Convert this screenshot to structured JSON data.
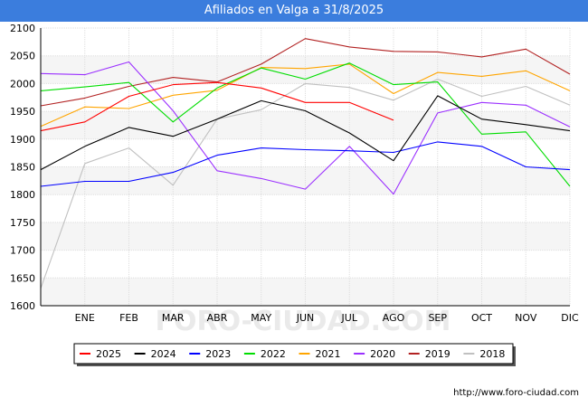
{
  "title": "Afiliados en Valga a 31/8/2025",
  "footer": "http://www.foro-ciudad.com",
  "watermark": "FORO-CIUDAD.COM",
  "chart_data": {
    "type": "line",
    "title": "Afiliados en Valga a 31/8/2025",
    "xlabel": "",
    "ylabel": "",
    "categories": [
      "",
      "ENE",
      "FEB",
      "MAR",
      "ABR",
      "MAY",
      "JUN",
      "JUL",
      "AGO",
      "SEP",
      "OCT",
      "NOV",
      "DIC"
    ],
    "ylim": [
      1600,
      2100
    ],
    "yticks": [
      1600,
      1650,
      1700,
      1750,
      1800,
      1850,
      1900,
      1950,
      2000,
      2050,
      2100
    ],
    "grid": true,
    "legend_position": "bottom",
    "series": [
      {
        "name": "2025",
        "color": "#ff0000",
        "values": [
          1915,
          1931,
          1977,
          1998,
          2002,
          1992,
          1966,
          1966,
          1934,
          null,
          null,
          null,
          null
        ]
      },
      {
        "name": "2024",
        "color": "#000000",
        "values": [
          1845,
          1887,
          1921,
          1905,
          1936,
          1969,
          1951,
          1911,
          1861,
          1978,
          1936,
          1926,
          1915
        ]
      },
      {
        "name": "2023",
        "color": "#0000ff",
        "values": [
          1815,
          1824,
          1824,
          1840,
          1871,
          1884,
          1881,
          1879,
          1876,
          1895,
          1887,
          1850,
          1845
        ]
      },
      {
        "name": "2022",
        "color": "#00dd00",
        "values": [
          1987,
          1994,
          2002,
          1931,
          1992,
          2028,
          2008,
          2037,
          1998,
          2003,
          1909,
          1913,
          1815
        ]
      },
      {
        "name": "2021",
        "color": "#ffa500",
        "values": [
          1923,
          1958,
          1955,
          1979,
          1988,
          2029,
          2027,
          2035,
          1982,
          2020,
          2013,
          2023,
          1987
        ]
      },
      {
        "name": "2020",
        "color": "#9b30ff",
        "values": [
          2018,
          2016,
          2039,
          1951,
          1843,
          1829,
          1810,
          1887,
          1801,
          1947,
          1966,
          1961,
          1922
        ]
      },
      {
        "name": "2019",
        "color": "#b22222",
        "values": [
          1960,
          1974,
          1995,
          2011,
          2003,
          2035,
          2081,
          2066,
          2058,
          2057,
          2048,
          2062,
          2017
        ]
      },
      {
        "name": "2018",
        "color": "#c0c0c0",
        "values": [
          1631,
          1856,
          1884,
          1817,
          1936,
          1953,
          2000,
          1993,
          1970,
          2008,
          1977,
          1995,
          1961
        ]
      }
    ]
  }
}
